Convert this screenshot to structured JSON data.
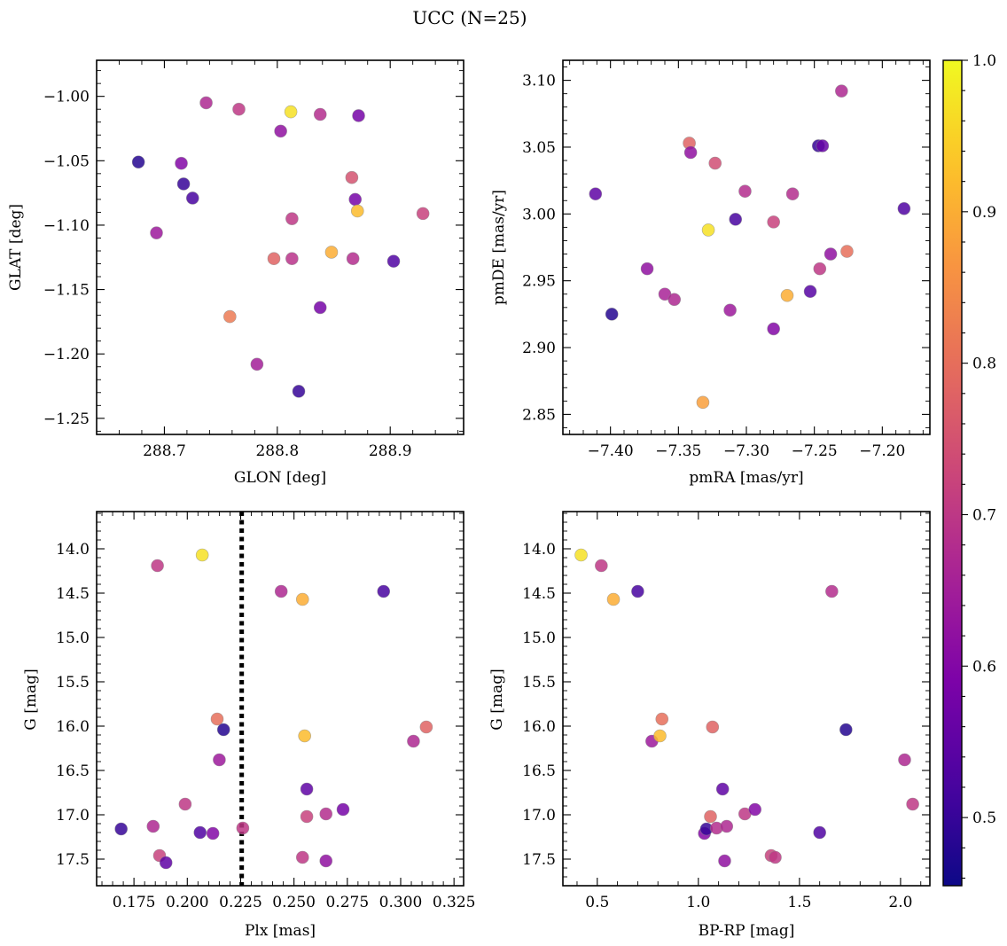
{
  "figure": {
    "title": "UCC (N=25)"
  },
  "colorbar": {
    "colormap": "plasma",
    "range": [
      0.455,
      1.0
    ],
    "ticks": [
      "0.5",
      "0.6",
      "0.7",
      "0.8",
      "0.9",
      "1.0"
    ],
    "tick_values": [
      0.5,
      0.6,
      0.7,
      0.8,
      0.9,
      1.0
    ]
  },
  "chart_data": [
    {
      "type": "scatter",
      "id": "glon-glat",
      "xlabel": "GLON [deg]",
      "ylabel": "GLAT [deg]",
      "xlim": [
        288.64,
        288.965
      ],
      "ylim": [
        -1.2625,
        -0.972
      ],
      "xticks": [
        288.7,
        288.8,
        288.9
      ],
      "xtick_labels": [
        "288.7",
        "288.8",
        "288.9"
      ],
      "yticks": [
        -1.25,
        -1.2,
        -1.15,
        -1.1,
        -1.05,
        -1.0
      ],
      "ytick_labels": [
        "−1.25",
        "−1.20",
        "−1.15",
        "−1.10",
        "−1.05",
        "−1.00"
      ],
      "points": [
        {
          "x": 288.677,
          "y": -1.051,
          "c": 0.48
        },
        {
          "x": 288.693,
          "y": -1.106,
          "c": 0.64
        },
        {
          "x": 288.715,
          "y": -1.052,
          "c": 0.6
        },
        {
          "x": 288.717,
          "y": -1.068,
          "c": 0.5
        },
        {
          "x": 288.725,
          "y": -1.079,
          "c": 0.52
        },
        {
          "x": 288.737,
          "y": -1.005,
          "c": 0.67
        },
        {
          "x": 288.758,
          "y": -1.171,
          "c": 0.82
        },
        {
          "x": 288.766,
          "y": -1.01,
          "c": 0.7
        },
        {
          "x": 288.782,
          "y": -1.208,
          "c": 0.65
        },
        {
          "x": 288.797,
          "y": -1.126,
          "c": 0.78
        },
        {
          "x": 288.803,
          "y": -1.027,
          "c": 0.62
        },
        {
          "x": 288.812,
          "y": -1.012,
          "c": 0.97
        },
        {
          "x": 288.813,
          "y": -1.095,
          "c": 0.7
        },
        {
          "x": 288.813,
          "y": -1.126,
          "c": 0.69
        },
        {
          "x": 288.819,
          "y": -1.229,
          "c": 0.5
        },
        {
          "x": 288.838,
          "y": -1.014,
          "c": 0.68
        },
        {
          "x": 288.838,
          "y": -1.164,
          "c": 0.58
        },
        {
          "x": 288.848,
          "y": -1.121,
          "c": 0.9
        },
        {
          "x": 288.866,
          "y": -1.063,
          "c": 0.75
        },
        {
          "x": 288.867,
          "y": -1.126,
          "c": 0.68
        },
        {
          "x": 288.869,
          "y": -1.08,
          "c": 0.58
        },
        {
          "x": 288.871,
          "y": -1.089,
          "c": 0.92
        },
        {
          "x": 288.872,
          "y": -1.015,
          "c": 0.58
        },
        {
          "x": 288.903,
          "y": -1.128,
          "c": 0.53
        },
        {
          "x": 288.929,
          "y": -1.091,
          "c": 0.72
        }
      ]
    },
    {
      "type": "scatter",
      "id": "pmra-pmde",
      "xlabel": "pmRA [mas/yr]",
      "ylabel": "pmDE [mas/yr]",
      "xlim": [
        -7.435,
        -7.165
      ],
      "ylim": [
        2.835,
        3.115
      ],
      "xticks": [
        -7.4,
        -7.35,
        -7.3,
        -7.25,
        -7.2
      ],
      "xtick_labels": [
        "−7.40",
        "−7.35",
        "−7.30",
        "−7.25",
        "−7.20"
      ],
      "yticks": [
        2.85,
        2.9,
        2.95,
        3.0,
        3.05,
        3.1
      ],
      "ytick_labels": [
        "2.85",
        "2.90",
        "2.95",
        "3.00",
        "3.05",
        "3.10"
      ],
      "points": [
        {
          "x": -7.411,
          "y": 3.015,
          "c": 0.55
        },
        {
          "x": -7.399,
          "y": 2.925,
          "c": 0.48
        },
        {
          "x": -7.373,
          "y": 2.959,
          "c": 0.62
        },
        {
          "x": -7.36,
          "y": 2.94,
          "c": 0.66
        },
        {
          "x": -7.353,
          "y": 2.936,
          "c": 0.67
        },
        {
          "x": -7.342,
          "y": 3.053,
          "c": 0.78
        },
        {
          "x": -7.341,
          "y": 3.046,
          "c": 0.62
        },
        {
          "x": -7.332,
          "y": 2.859,
          "c": 0.88
        },
        {
          "x": -7.328,
          "y": 2.988,
          "c": 0.97
        },
        {
          "x": -7.323,
          "y": 3.038,
          "c": 0.74
        },
        {
          "x": -7.312,
          "y": 2.928,
          "c": 0.64
        },
        {
          "x": -7.308,
          "y": 2.996,
          "c": 0.52
        },
        {
          "x": -7.301,
          "y": 3.017,
          "c": 0.68
        },
        {
          "x": -7.28,
          "y": 2.994,
          "c": 0.72
        },
        {
          "x": -7.28,
          "y": 2.914,
          "c": 0.6
        },
        {
          "x": -7.27,
          "y": 2.939,
          "c": 0.9
        },
        {
          "x": -7.266,
          "y": 3.015,
          "c": 0.68
        },
        {
          "x": -7.253,
          "y": 2.942,
          "c": 0.54
        },
        {
          "x": -7.247,
          "y": 3.051,
          "c": 0.5
        },
        {
          "x": -7.244,
          "y": 3.051,
          "c": 0.56
        },
        {
          "x": -7.246,
          "y": 2.959,
          "c": 0.7
        },
        {
          "x": -7.238,
          "y": 2.97,
          "c": 0.62
        },
        {
          "x": -7.23,
          "y": 3.092,
          "c": 0.67
        },
        {
          "x": -7.226,
          "y": 2.972,
          "c": 0.8
        },
        {
          "x": -7.184,
          "y": 3.004,
          "c": 0.53
        }
      ]
    },
    {
      "type": "scatter",
      "id": "plx-g",
      "xlabel": "Plx [mas]",
      "ylabel": "G [mag]",
      "xlim": [
        0.1575,
        0.3295
      ],
      "ylim": [
        17.8,
        13.58
      ],
      "y_inverted": true,
      "vline": {
        "x": 0.2255,
        "style": "dotted",
        "color": "#000000"
      },
      "xticks": [
        0.175,
        0.2,
        0.225,
        0.25,
        0.275,
        0.3,
        0.325
      ],
      "xtick_labels": [
        "0.175",
        "0.200",
        "0.225",
        "0.250",
        "0.275",
        "0.300",
        "0.325"
      ],
      "yticks": [
        14.0,
        14.5,
        15.0,
        15.5,
        16.0,
        16.5,
        17.0,
        17.5
      ],
      "ytick_labels": [
        "14.0",
        "14.5",
        "15.0",
        "15.5",
        "16.0",
        "16.5",
        "17.0",
        "17.5"
      ],
      "points": [
        {
          "x": 0.169,
          "y": 17.16,
          "c": 0.5
        },
        {
          "x": 0.184,
          "y": 17.13,
          "c": 0.67
        },
        {
          "x": 0.186,
          "y": 14.19,
          "c": 0.7
        },
        {
          "x": 0.187,
          "y": 17.46,
          "c": 0.72
        },
        {
          "x": 0.19,
          "y": 17.54,
          "c": 0.55
        },
        {
          "x": 0.199,
          "y": 16.88,
          "c": 0.7
        },
        {
          "x": 0.206,
          "y": 17.2,
          "c": 0.53
        },
        {
          "x": 0.207,
          "y": 14.07,
          "c": 0.97
        },
        {
          "x": 0.212,
          "y": 17.21,
          "c": 0.6
        },
        {
          "x": 0.214,
          "y": 15.92,
          "c": 0.8
        },
        {
          "x": 0.215,
          "y": 16.38,
          "c": 0.64
        },
        {
          "x": 0.217,
          "y": 16.04,
          "c": 0.48
        },
        {
          "x": 0.226,
          "y": 17.15,
          "c": 0.7
        },
        {
          "x": 0.244,
          "y": 14.48,
          "c": 0.67
        },
        {
          "x": 0.254,
          "y": 14.57,
          "c": 0.9
        },
        {
          "x": 0.254,
          "y": 17.48,
          "c": 0.7
        },
        {
          "x": 0.255,
          "y": 16.11,
          "c": 0.92
        },
        {
          "x": 0.256,
          "y": 16.71,
          "c": 0.55
        },
        {
          "x": 0.256,
          "y": 17.02,
          "c": 0.72
        },
        {
          "x": 0.265,
          "y": 16.99,
          "c": 0.68
        },
        {
          "x": 0.265,
          "y": 17.52,
          "c": 0.62
        },
        {
          "x": 0.273,
          "y": 16.94,
          "c": 0.58
        },
        {
          "x": 0.292,
          "y": 14.48,
          "c": 0.52
        },
        {
          "x": 0.306,
          "y": 16.17,
          "c": 0.67
        },
        {
          "x": 0.312,
          "y": 16.01,
          "c": 0.78
        }
      ]
    },
    {
      "type": "scatter",
      "id": "bprp-g",
      "xlabel": "BP-RP [mag]",
      "ylabel": "G [mag]",
      "xlim": [
        0.33,
        2.145
      ],
      "ylim": [
        17.8,
        13.58
      ],
      "y_inverted": true,
      "xticks": [
        0.5,
        1.0,
        1.5,
        2.0
      ],
      "xtick_labels": [
        "0.5",
        "1.0",
        "1.5",
        "2.0"
      ],
      "yticks": [
        14.0,
        14.5,
        15.0,
        15.5,
        16.0,
        16.5,
        17.0,
        17.5
      ],
      "ytick_labels": [
        "14.0",
        "14.5",
        "15.0",
        "15.5",
        "16.0",
        "16.5",
        "17.0",
        "17.5"
      ],
      "points": [
        {
          "x": 0.42,
          "y": 14.07,
          "c": 0.97
        },
        {
          "x": 0.52,
          "y": 14.19,
          "c": 0.7
        },
        {
          "x": 0.58,
          "y": 14.57,
          "c": 0.9
        },
        {
          "x": 0.7,
          "y": 14.48,
          "c": 0.52
        },
        {
          "x": 0.77,
          "y": 16.17,
          "c": 0.64
        },
        {
          "x": 0.81,
          "y": 16.11,
          "c": 0.92
        },
        {
          "x": 0.82,
          "y": 15.92,
          "c": 0.8
        },
        {
          "x": 1.03,
          "y": 17.21,
          "c": 0.6
        },
        {
          "x": 1.04,
          "y": 17.16,
          "c": 0.5
        },
        {
          "x": 1.06,
          "y": 17.02,
          "c": 0.78
        },
        {
          "x": 1.07,
          "y": 16.01,
          "c": 0.78
        },
        {
          "x": 1.09,
          "y": 17.15,
          "c": 0.68
        },
        {
          "x": 1.12,
          "y": 16.71,
          "c": 0.55
        },
        {
          "x": 1.13,
          "y": 17.52,
          "c": 0.62
        },
        {
          "x": 1.14,
          "y": 17.13,
          "c": 0.67
        },
        {
          "x": 1.23,
          "y": 16.99,
          "c": 0.7
        },
        {
          "x": 1.28,
          "y": 16.94,
          "c": 0.6
        },
        {
          "x": 1.36,
          "y": 17.46,
          "c": 0.72
        },
        {
          "x": 1.38,
          "y": 17.48,
          "c": 0.7
        },
        {
          "x": 1.6,
          "y": 17.2,
          "c": 0.53
        },
        {
          "x": 1.66,
          "y": 14.48,
          "c": 0.68
        },
        {
          "x": 1.73,
          "y": 16.04,
          "c": 0.48
        },
        {
          "x": 2.02,
          "y": 16.38,
          "c": 0.67
        },
        {
          "x": 2.06,
          "y": 16.88,
          "c": 0.7
        }
      ]
    }
  ]
}
